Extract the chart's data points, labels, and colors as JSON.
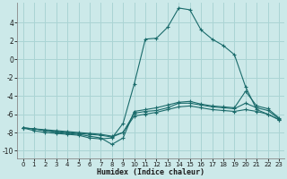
{
  "xlabel": "Humidex (Indice chaleur)",
  "background_color": "#cce9e9",
  "grid_color": "#aad4d4",
  "line_color": "#1a6b6b",
  "xlim": [
    -0.5,
    23.5
  ],
  "ylim": [
    -10.8,
    6.2
  ],
  "yticks": [
    -10,
    -8,
    -6,
    -4,
    -2,
    0,
    2,
    4
  ],
  "xticks": [
    0,
    1,
    2,
    3,
    4,
    5,
    6,
    7,
    8,
    9,
    10,
    11,
    12,
    13,
    14,
    15,
    16,
    17,
    18,
    19,
    20,
    21,
    22,
    23
  ],
  "series": [
    {
      "x": [
        0,
        1,
        2,
        3,
        4,
        5,
        6,
        7,
        8,
        9,
        10,
        11,
        12,
        13,
        14,
        15,
        16,
        17,
        18,
        19,
        20,
        21,
        22,
        23
      ],
      "y": [
        -7.5,
        -7.8,
        -8.0,
        -8.1,
        -8.2,
        -8.3,
        -8.6,
        -8.7,
        -8.6,
        -7.0,
        -2.7,
        2.2,
        2.3,
        3.5,
        5.6,
        5.4,
        3.2,
        2.2,
        1.5,
        0.5,
        -3.0,
        -5.5,
        -6.0,
        -6.6
      ]
    },
    {
      "x": [
        0,
        1,
        2,
        3,
        4,
        5,
        6,
        7,
        8,
        9,
        10,
        11,
        12,
        13,
        14,
        15,
        16,
        17,
        18,
        19,
        20,
        21,
        22,
        23
      ],
      "y": [
        -7.5,
        -7.6,
        -7.8,
        -7.9,
        -8.0,
        -8.1,
        -8.2,
        -8.3,
        -8.5,
        -8.0,
        -5.9,
        -5.7,
        -5.6,
        -5.3,
        -4.8,
        -4.8,
        -5.0,
        -5.2,
        -5.3,
        -5.4,
        -4.8,
        -5.3,
        -5.6,
        -6.5
      ]
    },
    {
      "x": [
        0,
        1,
        2,
        3,
        4,
        5,
        6,
        7,
        8,
        9,
        10,
        11,
        12,
        13,
        14,
        15,
        16,
        17,
        18,
        19,
        20,
        21,
        22,
        23
      ],
      "y": [
        -7.5,
        -7.6,
        -7.7,
        -7.8,
        -7.9,
        -8.0,
        -8.1,
        -8.2,
        -8.4,
        -8.0,
        -6.2,
        -6.0,
        -5.8,
        -5.5,
        -5.2,
        -5.1,
        -5.3,
        -5.5,
        -5.6,
        -5.7,
        -5.5,
        -5.7,
        -6.0,
        -6.6
      ]
    },
    {
      "x": [
        0,
        1,
        2,
        3,
        4,
        5,
        6,
        7,
        8,
        9,
        10,
        11,
        12,
        13,
        14,
        15,
        16,
        17,
        18,
        19,
        20,
        21,
        22,
        23
      ],
      "y": [
        -7.5,
        -7.6,
        -7.8,
        -8.0,
        -8.1,
        -8.2,
        -8.4,
        -8.6,
        -9.3,
        -8.6,
        -5.7,
        -5.5,
        -5.3,
        -5.0,
        -4.7,
        -4.6,
        -4.9,
        -5.1,
        -5.2,
        -5.3,
        -3.5,
        -5.1,
        -5.4,
        -6.4
      ]
    }
  ]
}
